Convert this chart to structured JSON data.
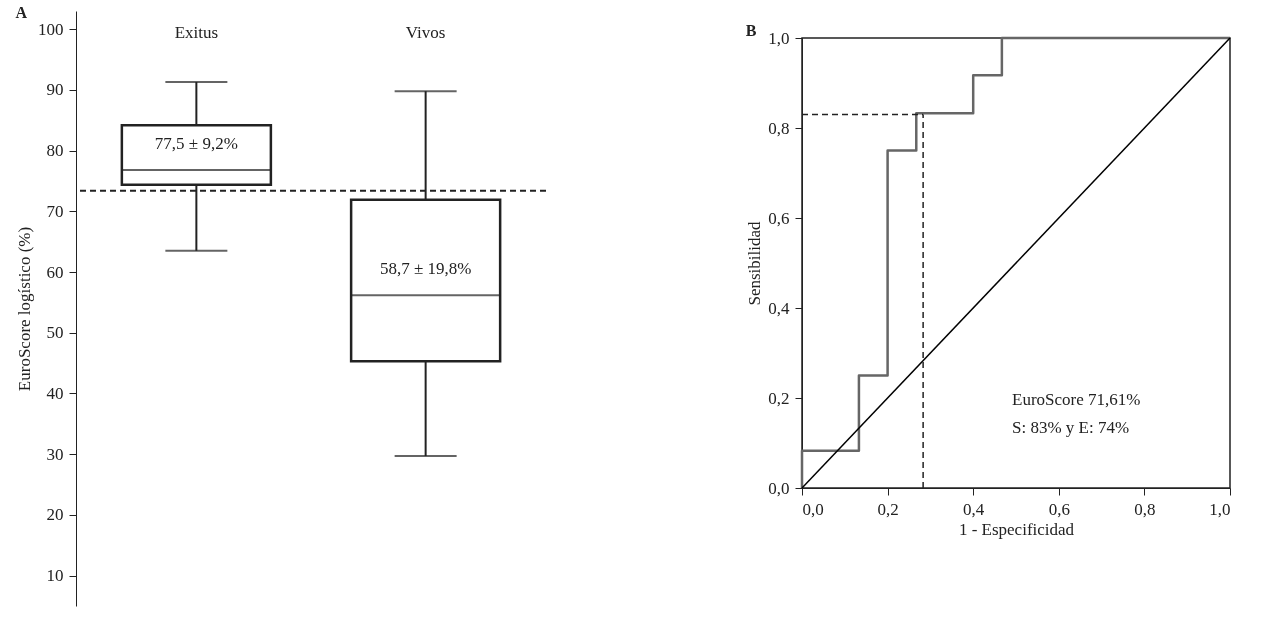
{
  "chart_data": [
    {
      "type": "box",
      "title": "A",
      "ylabel": "EuroScore logístico (%)",
      "categories": [
        "Exitus",
        "Vivos"
      ],
      "boxes": [
        {
          "low": 63.5,
          "q1": 74.4,
          "median": 76.8,
          "q3": 84.2,
          "high": 91.3
        },
        {
          "low": 29.7,
          "q1": 45.3,
          "median": 56.2,
          "q3": 71.9,
          "high": 89.8
        }
      ],
      "color": "#222222",
      "ylim": [
        5,
        103
      ],
      "yticks": [
        10,
        20,
        30,
        40,
        50,
        60,
        70,
        80,
        90,
        100
      ],
      "grid": false,
      "ref_lines": [
        {
          "axis": "y",
          "value": 73.4,
          "line_style": "dashed",
          "color": "#222222"
        }
      ],
      "annotations": [
        "77,5 ± 9,2%",
        "58,7 ± 19,8%"
      ]
    },
    {
      "type": "line",
      "title": "B",
      "xlabel": "1 - Especificidad",
      "ylabel": "Sensibilidad",
      "series": [
        {
          "color": "#666666",
          "x": [
            0,
            0,
            0.133,
            0.133,
            0.2,
            0.2,
            0.267,
            0.267,
            0.4,
            0.4,
            0.467,
            0.467,
            1
          ],
          "values": [
            0,
            0.083,
            0.083,
            0.25,
            0.25,
            0.75,
            0.75,
            0.833,
            0.833,
            0.917,
            0.917,
            1,
            1
          ]
        },
        {
          "color": "#000000",
          "x": [
            0,
            1
          ],
          "values": [
            0,
            1
          ]
        },
        {
          "color": "#222222",
          "line_style": "dashed",
          "x": [
            0,
            0.283
          ],
          "values": [
            0.83,
            0.83
          ]
        },
        {
          "color": "#222222",
          "line_style": "dashed",
          "x": [
            0.283,
            0.283
          ],
          "values": [
            0,
            0.83
          ]
        }
      ],
      "xlim": [
        0,
        1
      ],
      "ylim": [
        0,
        1
      ],
      "xticks": [
        {
          "value": 0,
          "label": "0,0"
        },
        {
          "value": 0.2,
          "label": "0,2"
        },
        {
          "value": 0.4,
          "label": "0,4"
        },
        {
          "value": 0.6,
          "label": "0,6"
        },
        {
          "value": 0.8,
          "label": "0,8"
        },
        {
          "value": 1,
          "label": "1,0"
        }
      ],
      "yticks": [
        {
          "value": 0,
          "label": "0,0"
        },
        {
          "value": 0.2,
          "label": "0,2"
        },
        {
          "value": 0.4,
          "label": "0,4"
        },
        {
          "value": 0.6,
          "label": "0,6"
        },
        {
          "value": 0.8,
          "label": "0,8"
        },
        {
          "value": 1,
          "label": "1,0"
        }
      ],
      "grid": false,
      "annotations": [
        "EuroScore 71,61%",
        "S: 83% y E: 74%"
      ]
    }
  ]
}
